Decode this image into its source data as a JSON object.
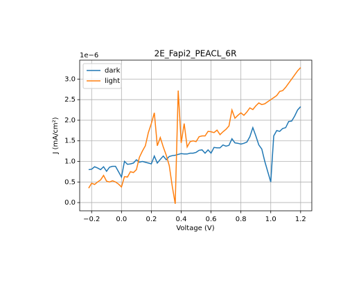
{
  "chart_data": {
    "type": "line",
    "title": "2E_Fapi2_PEACL_6R",
    "xlabel": "Voltage (V)",
    "ylabel": "J (mA/cm²)",
    "offset_label": "1e−6",
    "x": [
      -0.22,
      -0.2,
      -0.18,
      -0.16,
      -0.14,
      -0.12,
      -0.1,
      -0.08,
      -0.06,
      -0.04,
      -0.02,
      0,
      0.02,
      0.04,
      0.06,
      0.08,
      0.1,
      0.12,
      0.14,
      0.16,
      0.18,
      0.2,
      0.22,
      0.24,
      0.26,
      0.28,
      0.3,
      0.32,
      0.34,
      0.36,
      0.38,
      0.4,
      0.42,
      0.44,
      0.46,
      0.48,
      0.5,
      0.52,
      0.54,
      0.56,
      0.58,
      0.6,
      0.62,
      0.64,
      0.66,
      0.68,
      0.7,
      0.72,
      0.74,
      0.76,
      0.78,
      0.8,
      0.82,
      0.84,
      0.86,
      0.88,
      0.9,
      0.92,
      0.94,
      0.96,
      0.98,
      1.0,
      1.02,
      1.04,
      1.06,
      1.08,
      1.1,
      1.12,
      1.14,
      1.16,
      1.18,
      1.2
    ],
    "series": [
      {
        "name": "dark",
        "color": "#1f77b4",
        "values": [
          0.8,
          0.81,
          0.87,
          0.84,
          0.8,
          0.87,
          0.76,
          0.86,
          0.88,
          0.88,
          0.75,
          0.62,
          1.0,
          0.93,
          0.94,
          0.96,
          1.04,
          0.98,
          1.0,
          0.98,
          0.96,
          0.94,
          1.13,
          0.96,
          1.05,
          1.13,
          1.04,
          1.12,
          1.14,
          1.15,
          1.17,
          1.19,
          1.18,
          1.18,
          1.2,
          1.2,
          1.22,
          1.27,
          1.28,
          1.2,
          1.28,
          1.2,
          1.34,
          1.33,
          1.33,
          1.4,
          1.37,
          1.39,
          1.55,
          1.45,
          1.44,
          1.42,
          1.44,
          1.47,
          1.6,
          1.82,
          1.62,
          1.4,
          1.3,
          1.0,
          0.75,
          0.5,
          1.62,
          1.75,
          1.73,
          1.8,
          1.82,
          1.97,
          1.98,
          2.1,
          2.25,
          2.33
        ]
      },
      {
        "name": "light",
        "color": "#ff7f0e",
        "values": [
          0.35,
          0.47,
          0.44,
          0.5,
          0.55,
          0.66,
          0.52,
          0.5,
          0.53,
          0.5,
          0.45,
          0.38,
          0.63,
          0.62,
          0.75,
          0.73,
          0.8,
          1.1,
          1.25,
          1.38,
          1.7,
          1.92,
          2.18,
          1.38,
          1.58,
          1.35,
          1.15,
          0.9,
          0.4,
          -0.03,
          2.72,
          1.45,
          1.92,
          1.35,
          1.48,
          1.5,
          1.48,
          1.6,
          1.62,
          1.62,
          1.73,
          1.72,
          1.7,
          1.76,
          1.65,
          1.72,
          1.78,
          1.86,
          2.25,
          2.05,
          2.12,
          2.18,
          2.12,
          2.2,
          2.3,
          2.26,
          2.35,
          2.42,
          2.38,
          2.4,
          2.45,
          2.5,
          2.55,
          2.6,
          2.7,
          2.72,
          2.8,
          2.9,
          3.0,
          3.1,
          3.2,
          3.28
        ]
      }
    ],
    "xlim": [
      -0.28,
      1.275
    ],
    "ylim": [
      -0.2,
      3.46
    ],
    "xticks": [
      {
        "value": -0.2,
        "label": "−0.2"
      },
      {
        "value": 0,
        "label": "0.0"
      },
      0.2,
      0.4,
      0.6,
      0.8,
      {
        "value": 1,
        "label": "1.0"
      },
      1.2
    ],
    "yticks": [
      {
        "value": 0,
        "label": "0.0"
      },
      0.5,
      {
        "value": 1,
        "label": "1.0"
      },
      1.5,
      {
        "value": 2,
        "label": "2.0"
      },
      2.5,
      {
        "value": 3,
        "label": "3.0"
      }
    ],
    "grid": true,
    "legend": "upper left"
  }
}
